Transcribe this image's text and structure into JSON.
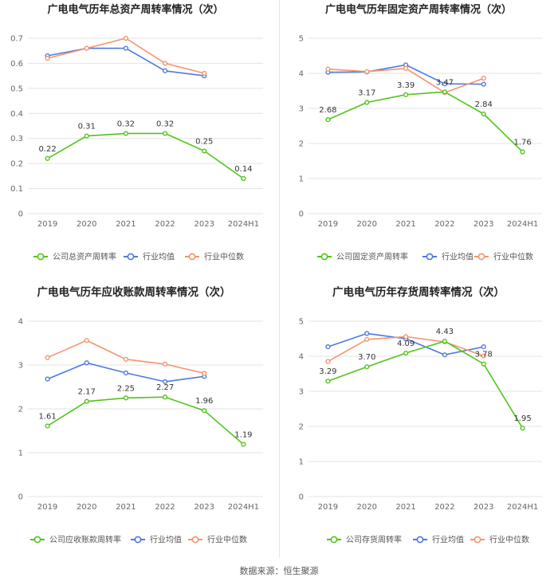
{
  "source": "数据来源：恒生聚源",
  "colors": {
    "company": "#52c41a",
    "industry_avg": "#4e79e0",
    "industry_median": "#f4946e"
  },
  "chart_data": [
    {
      "type": "line",
      "title": "广电电气历年总资产周转率情况（次）",
      "categories": [
        "2019",
        "2020",
        "2021",
        "2022",
        "2023",
        "2024H1"
      ],
      "ylim": [
        0,
        0.7
      ],
      "yticks": [
        "0",
        "0.1",
        "0.2",
        "0.3",
        "0.4",
        "0.5",
        "0.6",
        "0.7"
      ],
      "series": [
        {
          "name": "公司总资产周转率",
          "role": "company",
          "values": [
            0.22,
            0.31,
            0.32,
            0.32,
            0.25,
            0.14
          ],
          "labels": [
            "0.22",
            "0.31",
            "0.32",
            "0.32",
            "0.25",
            "0.14"
          ]
        },
        {
          "name": "行业均值",
          "role": "industry_avg",
          "values": [
            0.63,
            0.66,
            0.66,
            0.57,
            0.55,
            null
          ]
        },
        {
          "name": "行业中位数",
          "role": "industry_median",
          "values": [
            0.62,
            0.66,
            0.7,
            0.6,
            0.56,
            null
          ]
        }
      ]
    },
    {
      "type": "line",
      "title": "广电电气历年固定资产周转率情况（次）",
      "categories": [
        "2019",
        "2020",
        "2021",
        "2022",
        "2023",
        "2024H1"
      ],
      "ylim": [
        0,
        5
      ],
      "yticks": [
        "0",
        "1",
        "2",
        "3",
        "4",
        "5"
      ],
      "series": [
        {
          "name": "公司固定资产周转率",
          "role": "company",
          "values": [
            2.68,
            3.17,
            3.39,
            3.47,
            2.84,
            1.76
          ],
          "labels": [
            "2.68",
            "3.17",
            "3.39",
            "3.47",
            "2.84",
            "1.76"
          ]
        },
        {
          "name": "行业均值",
          "role": "industry_avg",
          "values": [
            4.03,
            4.04,
            4.24,
            3.7,
            3.69,
            null
          ]
        },
        {
          "name": "行业中位数",
          "role": "industry_median",
          "values": [
            4.12,
            4.05,
            4.14,
            3.45,
            3.86,
            null
          ]
        }
      ]
    },
    {
      "type": "line",
      "title": "广电电气历年应收账款周转率情况（次）",
      "categories": [
        "2019",
        "2020",
        "2021",
        "2022",
        "2023",
        "2024H1"
      ],
      "ylim": [
        0,
        4
      ],
      "yticks": [
        "0",
        "1",
        "2",
        "3",
        "4"
      ],
      "series": [
        {
          "name": "公司应收账款周转率",
          "role": "company",
          "values": [
            1.61,
            2.17,
            2.25,
            2.27,
            1.96,
            1.19
          ],
          "labels": [
            "1.61",
            "2.17",
            "2.25",
            "2.27",
            "1.96",
            "1.19"
          ]
        },
        {
          "name": "行业均值",
          "role": "industry_avg",
          "values": [
            2.68,
            3.05,
            2.82,
            2.62,
            2.74,
            null
          ]
        },
        {
          "name": "行业中位数",
          "role": "industry_median",
          "values": [
            3.17,
            3.56,
            3.13,
            3.02,
            2.81,
            null
          ]
        }
      ]
    },
    {
      "type": "line",
      "title": "广电电气历年存货周转率情况（次）",
      "categories": [
        "2019",
        "2020",
        "2021",
        "2022",
        "2023",
        "2024H1"
      ],
      "ylim": [
        0,
        5
      ],
      "yticks": [
        "0",
        "1",
        "2",
        "3",
        "4",
        "5"
      ],
      "series": [
        {
          "name": "公司存货周转率",
          "role": "company",
          "values": [
            3.29,
            3.7,
            4.09,
            4.43,
            3.78,
            1.95
          ],
          "labels": [
            "3.29",
            "3.70",
            "4.09",
            "4.43",
            "3.78",
            "1.95"
          ]
        },
        {
          "name": "行业均值",
          "role": "industry_avg",
          "values": [
            4.27,
            4.65,
            4.5,
            4.04,
            4.27,
            null
          ]
        },
        {
          "name": "行业中位数",
          "role": "industry_median",
          "values": [
            3.85,
            4.48,
            4.56,
            4.41,
            4.01,
            null
          ]
        }
      ]
    }
  ]
}
